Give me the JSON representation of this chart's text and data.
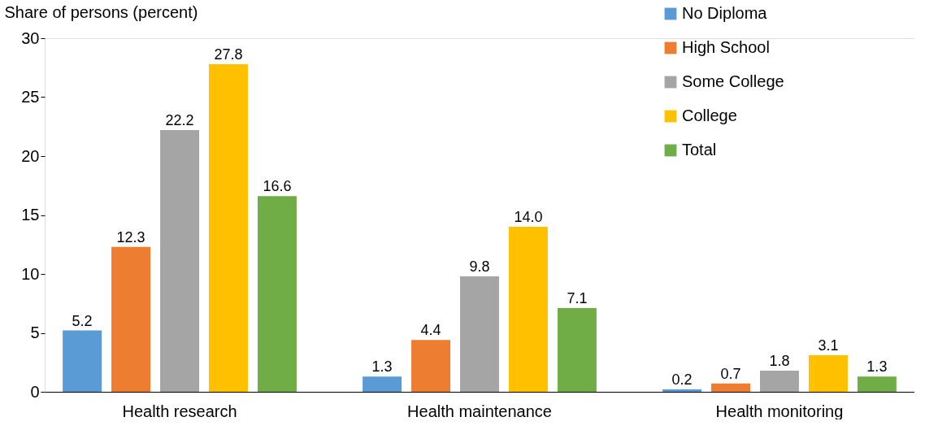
{
  "chart_data": {
    "type": "bar",
    "ylabel": "Share of persons (percent)",
    "categories": [
      "Health research",
      "Health maintenance",
      "Health monitoring"
    ],
    "series": [
      {
        "name": "No Diploma",
        "color": "#5b9bd5",
        "values": [
          5.2,
          1.3,
          0.2
        ],
        "value_labels": [
          "5.2",
          "1.3",
          "0.2"
        ]
      },
      {
        "name": "High School",
        "color": "#ed7d31",
        "values": [
          12.3,
          4.4,
          0.7
        ],
        "value_labels": [
          "12.3",
          "4.4",
          "0.7"
        ]
      },
      {
        "name": "Some College",
        "color": "#a5a5a5",
        "values": [
          22.2,
          9.8,
          1.8
        ],
        "value_labels": [
          "22.2",
          "9.8",
          "1.8"
        ]
      },
      {
        "name": "College",
        "color": "#ffc000",
        "values": [
          27.8,
          14.0,
          3.1
        ],
        "value_labels": [
          "27.8",
          "14.0",
          "3.1"
        ]
      },
      {
        "name": "Total",
        "color": "#70ad47",
        "values": [
          16.6,
          7.1,
          1.3
        ],
        "value_labels": [
          "16.6",
          "7.1",
          "1.3"
        ]
      }
    ],
    "ylim": [
      0,
      30
    ],
    "yticks": [
      0,
      5,
      10,
      15,
      20,
      25,
      30
    ],
    "legend": "top right",
    "grid": false
  }
}
